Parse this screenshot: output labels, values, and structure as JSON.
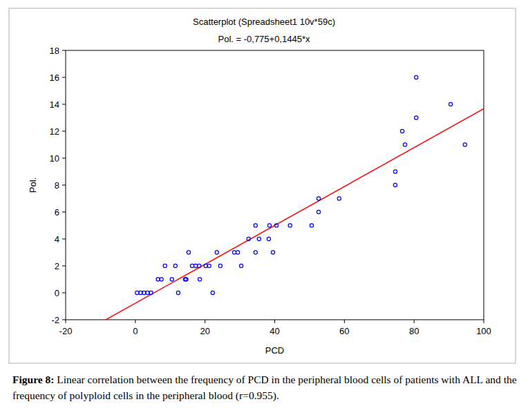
{
  "chart_data": {
    "type": "scatter",
    "title": "Scatterplot (Spreadsheet1 10v*59c)",
    "subtitle": "Pol. = -0,775+0,1445*x",
    "x_label": "PCD",
    "y_label": "Pol.",
    "caption": {
      "label": "Figure 8:",
      "text": "Linear correlation between the frequency of PCD in the peripheral blood cells of patients with ALL and the frequency of polyploid cells in the peripheral blood (r=0.955)."
    },
    "x": [
      0.5,
      1.5,
      2.5,
      3.5,
      4.5,
      6.5,
      7.5,
      8.5,
      10.5,
      11.5,
      12.3,
      14.3,
      14.6,
      15.3,
      16.3,
      17.3,
      18.3,
      18.5,
      20.2,
      21.2,
      22.2,
      23.4,
      24.4,
      28.4,
      29.4,
      30.4,
      32.5,
      34.5,
      34.5,
      35.5,
      38.3,
      38.5,
      39.5,
      40.5,
      44.4,
      50.6,
      52.6,
      52.6,
      58.5,
      74.6,
      74.6,
      76.6,
      77.4,
      80.6,
      80.6,
      90.5,
      94.6
    ],
    "values": [
      0,
      0,
      0,
      0,
      0,
      1,
      1,
      2,
      1,
      2,
      0,
      1,
      1,
      3,
      2,
      2,
      2,
      1,
      2,
      2,
      0,
      3,
      2,
      3,
      3,
      2,
      4,
      5,
      3,
      4,
      4,
      5,
      3,
      5,
      5,
      5,
      6,
      7,
      7,
      8,
      9,
      12,
      11,
      16,
      13,
      14,
      11
    ],
    "color": "#0000ff",
    "marker": "circle",
    "fit": {
      "intercept": -0.775,
      "slope": 0.1445,
      "color": "#ff0000"
    },
    "xlim": [
      -20,
      100
    ],
    "xticks": [
      -20,
      0,
      20,
      40,
      60,
      80,
      100
    ],
    "ylim": [
      -2,
      18
    ],
    "yticks": [
      -2,
      0,
      2,
      4,
      6,
      8,
      10,
      12,
      14,
      16,
      18
    ],
    "grid": false
  }
}
